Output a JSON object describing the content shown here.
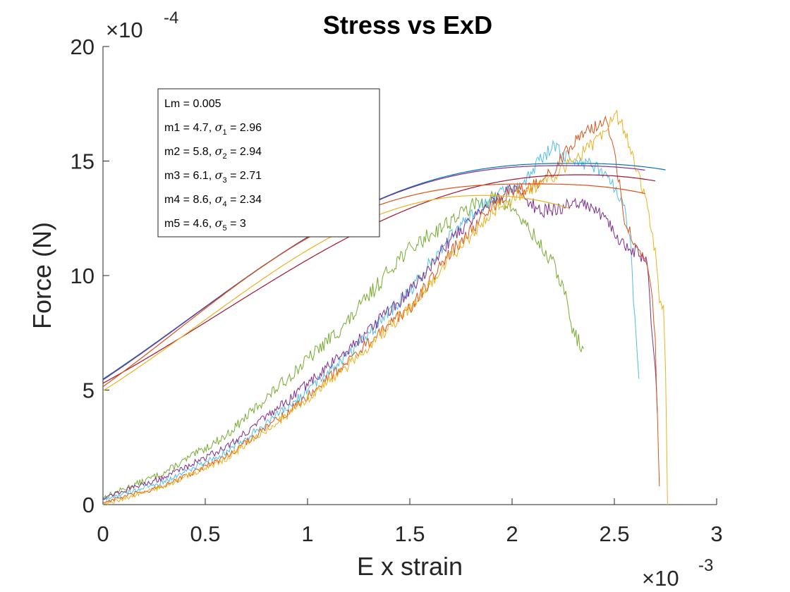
{
  "chart_data": {
    "type": "line",
    "title": "Stress vs ExD",
    "xlabel": "E x strain",
    "ylabel": "Force (N)",
    "x_multiplier": "×10",
    "x_exponent": "-3",
    "y_multiplier": "×10",
    "y_exponent": "-4",
    "xlim": [
      0,
      3
    ],
    "ylim": [
      0,
      20
    ],
    "x_ticks": [
      "0",
      "0.5",
      "1",
      "1.5",
      "2",
      "2.5",
      "3"
    ],
    "y_ticks": [
      "0",
      "5",
      "10",
      "15",
      "20"
    ],
    "grid": false,
    "legend_position": "top-left",
    "annotation_lines": [
      {
        "text": "Lm = 0.005"
      },
      {
        "prefix": "m1 = 4.7, ",
        "symbol": "σ",
        "sub": "1",
        "suffix": " = 2.96"
      },
      {
        "prefix": "m2 = 5.8, ",
        "symbol": "σ",
        "sub": "2",
        "suffix": " = 2.94"
      },
      {
        "prefix": "m3 = 6.1, ",
        "symbol": "σ",
        "sub": "3",
        "suffix": " = 2.71"
      },
      {
        "prefix": "m4 = 8.6, ",
        "symbol": "σ",
        "sub": "4",
        "suffix": " = 2.34"
      },
      {
        "prefix": "m5 = 4.6, ",
        "symbol": "σ",
        "sub": "5",
        "suffix": " = 3"
      }
    ],
    "series": [
      {
        "kind": "data",
        "color": "#77AC30",
        "noise": 0.35,
        "points": [
          [
            0,
            0.3
          ],
          [
            0.3,
            1.4
          ],
          [
            0.6,
            3.0
          ],
          [
            0.9,
            5.5
          ],
          [
            1.2,
            8.0
          ],
          [
            1.45,
            10.8
          ],
          [
            1.6,
            11.8
          ],
          [
            1.8,
            13.0
          ],
          [
            1.9,
            13.4
          ],
          [
            2.0,
            13.0
          ],
          [
            2.1,
            11.8
          ],
          [
            2.2,
            10.5
          ],
          [
            2.25,
            9.5
          ],
          [
            2.3,
            7.5
          ],
          [
            2.35,
            6.8
          ]
        ]
      },
      {
        "kind": "data",
        "color": "#4DBEEE",
        "noise": 0.3,
        "points": [
          [
            0,
            0.2
          ],
          [
            0.3,
            1.0
          ],
          [
            0.6,
            2.3
          ],
          [
            0.9,
            4.2
          ],
          [
            1.2,
            6.6
          ],
          [
            1.5,
            9.3
          ],
          [
            1.7,
            11.8
          ],
          [
            1.9,
            13.4
          ],
          [
            2.05,
            14.0
          ],
          [
            2.15,
            15.2
          ],
          [
            2.2,
            15.6
          ],
          [
            2.3,
            15.0
          ],
          [
            2.4,
            14.8
          ],
          [
            2.48,
            14.2
          ],
          [
            2.55,
            13.0
          ],
          [
            2.58,
            11.2
          ],
          [
            2.6,
            8.0
          ],
          [
            2.62,
            5.5
          ]
        ]
      },
      {
        "kind": "data",
        "color": "#7E2F8E",
        "noise": 0.3,
        "points": [
          [
            0,
            0.3
          ],
          [
            0.3,
            1.2
          ],
          [
            0.6,
            2.5
          ],
          [
            0.9,
            4.5
          ],
          [
            1.2,
            6.8
          ],
          [
            1.5,
            9.3
          ],
          [
            1.7,
            11.6
          ],
          [
            1.9,
            13.3
          ],
          [
            2.0,
            13.8
          ],
          [
            2.08,
            13.2
          ],
          [
            2.15,
            12.8
          ],
          [
            2.25,
            13.0
          ],
          [
            2.35,
            13.2
          ],
          [
            2.45,
            12.5
          ],
          [
            2.55,
            11.3
          ],
          [
            2.62,
            11.0
          ],
          [
            2.66,
            10.5
          ],
          [
            2.68,
            8.0
          ],
          [
            2.7,
            6.0
          ],
          [
            2.71,
            4.0
          ]
        ]
      },
      {
        "kind": "data",
        "color": "#D95319",
        "noise": 0.3,
        "points": [
          [
            0,
            0.1
          ],
          [
            0.3,
            0.8
          ],
          [
            0.6,
            2.1
          ],
          [
            0.9,
            4.0
          ],
          [
            1.2,
            6.3
          ],
          [
            1.5,
            8.6
          ],
          [
            1.7,
            11.0
          ],
          [
            1.9,
            13.0
          ],
          [
            2.0,
            13.6
          ],
          [
            2.1,
            13.9
          ],
          [
            2.2,
            14.6
          ],
          [
            2.3,
            15.8
          ],
          [
            2.4,
            16.5
          ],
          [
            2.45,
            16.8
          ],
          [
            2.5,
            15.5
          ],
          [
            2.55,
            12.5
          ],
          [
            2.6,
            11.5
          ],
          [
            2.65,
            10.8
          ],
          [
            2.68,
            9.5
          ],
          [
            2.7,
            7.0
          ],
          [
            2.71,
            4.0
          ],
          [
            2.72,
            0.8
          ]
        ]
      },
      {
        "kind": "data",
        "color": "#EDB120",
        "noise": 0.3,
        "points": [
          [
            0,
            0.0
          ],
          [
            0.3,
            0.8
          ],
          [
            0.6,
            2.0
          ],
          [
            0.9,
            3.9
          ],
          [
            1.2,
            6.1
          ],
          [
            1.5,
            8.6
          ],
          [
            1.7,
            10.8
          ],
          [
            1.9,
            12.8
          ],
          [
            2.05,
            13.6
          ],
          [
            2.2,
            14.3
          ],
          [
            2.3,
            15.0
          ],
          [
            2.4,
            15.8
          ],
          [
            2.45,
            16.3
          ],
          [
            2.5,
            17.2
          ],
          [
            2.55,
            16.3
          ],
          [
            2.6,
            15.0
          ],
          [
            2.65,
            13.5
          ],
          [
            2.7,
            11.0
          ],
          [
            2.72,
            9.0
          ],
          [
            2.74,
            8.5
          ],
          [
            2.75,
            6.0
          ],
          [
            2.76,
            0.0
          ]
        ]
      },
      {
        "kind": "fit",
        "color": "#A2142F",
        "x0": 0,
        "x1": 2.7,
        "A": 14.4,
        "k": 2.16,
        "c": 2.33
      },
      {
        "kind": "fit",
        "color": "#0072BD",
        "x0": 0,
        "x1": 2.75,
        "A": 14.9,
        "k": 2.46,
        "c": 2.29
      },
      {
        "kind": "fit",
        "color": "#7E2F8E",
        "x0": 0,
        "x1": 2.65,
        "A": 14.8,
        "k": 2.46,
        "c": 2.26
      },
      {
        "kind": "fit",
        "color": "#D95319",
        "x0": 0,
        "x1": 2.65,
        "A": 14.0,
        "k": 2.61,
        "c": 2.1
      },
      {
        "kind": "fit",
        "color": "#EDB120",
        "x0": 0,
        "x1": 2.28,
        "A": 13.5,
        "k": 2.12,
        "c": 1.86
      }
    ]
  }
}
